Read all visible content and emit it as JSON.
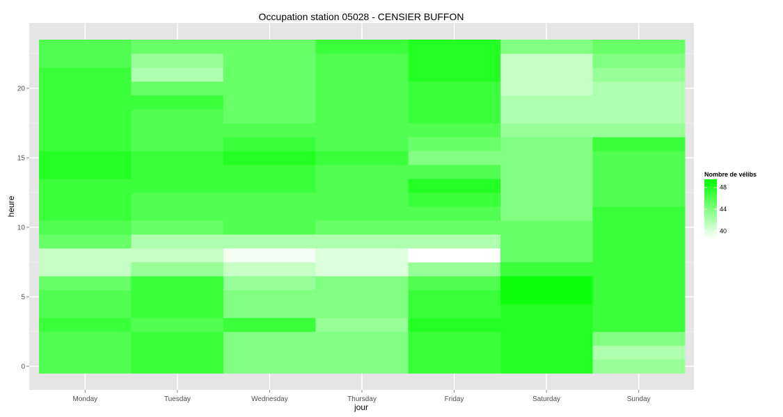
{
  "colors": {
    "panel_bg": "#e5e5e5",
    "grid_major": "#ffffff",
    "grid_minor": "#f2f2f2",
    "low": "#ffffff",
    "high": "#00ff00"
  },
  "chart_data": {
    "type": "heatmap",
    "title": "Occupation station 05028 - CENSIER BUFFON",
    "xlabel": "jour",
    "ylabel": "heure",
    "x_categories": [
      "Monday",
      "Tuesday",
      "Wednesday",
      "Thursday",
      "Friday",
      "Saturday",
      "Sunday"
    ],
    "y_ticks": [
      0,
      5,
      10,
      15,
      20
    ],
    "y_ticks_labels": [
      "0",
      "5",
      "10",
      "15",
      "20"
    ],
    "ylim": [
      -0.5,
      23.5
    ],
    "grid": true,
    "legend": {
      "title": "Nombre de vélibs",
      "position": "right",
      "breaks": [
        40,
        44,
        48
      ],
      "break_labels": [
        "40",
        "44",
        "48"
      ],
      "range": [
        38.5,
        49.5
      ]
    },
    "values": [
      [
        46,
        47,
        44,
        44,
        47,
        48,
        43
      ],
      [
        46,
        47,
        44,
        44,
        47,
        48,
        42
      ],
      [
        46,
        47,
        44,
        44,
        47,
        48,
        44
      ],
      [
        47,
        46,
        47,
        43,
        48,
        48,
        47
      ],
      [
        46,
        47,
        44,
        44,
        47,
        48,
        47
      ],
      [
        46,
        47,
        44,
        44,
        47,
        49,
        47
      ],
      [
        45,
        47,
        43,
        44,
        46,
        49,
        47
      ],
      [
        41,
        43,
        41,
        40,
        43,
        47,
        47
      ],
      [
        41,
        41,
        39,
        40,
        38,
        45,
        47
      ],
      [
        45,
        42,
        42,
        42,
        42,
        45,
        47
      ],
      [
        46,
        45,
        46,
        45,
        45,
        45,
        47
      ],
      [
        47,
        46,
        46,
        46,
        46,
        44,
        47
      ],
      [
        47,
        46,
        46,
        46,
        47,
        44,
        46
      ],
      [
        47,
        47,
        47,
        46,
        48,
        44,
        46
      ],
      [
        48,
        47,
        47,
        46,
        46,
        44,
        46
      ],
      [
        48,
        47,
        48,
        47,
        44,
        44,
        46
      ],
      [
        47,
        46,
        47,
        46,
        45,
        44,
        47
      ],
      [
        47,
        46,
        46,
        46,
        46,
        43,
        43
      ],
      [
        47,
        46,
        45,
        46,
        47,
        42,
        42
      ],
      [
        47,
        47,
        45,
        46,
        47,
        42,
        42
      ],
      [
        47,
        45,
        45,
        46,
        47,
        41,
        42
      ],
      [
        47,
        42,
        45,
        46,
        48,
        41,
        43
      ],
      [
        46,
        43,
        45,
        46,
        48,
        41,
        44
      ],
      [
        46,
        45,
        45,
        47,
        48,
        44,
        45
      ]
    ]
  }
}
